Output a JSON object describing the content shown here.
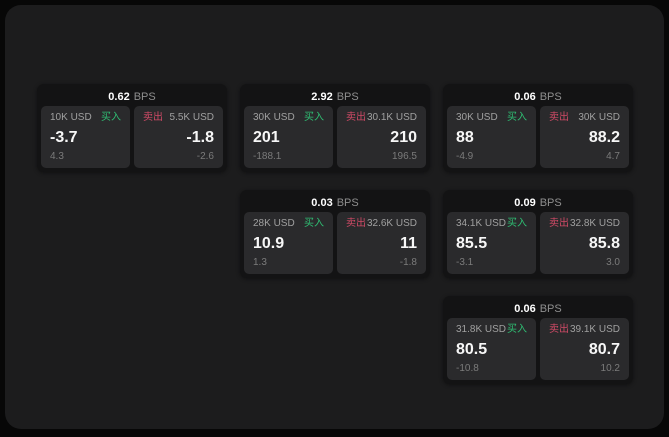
{
  "labels": {
    "buy": "买入",
    "sell": "卖出",
    "bps_unit": "BPS"
  },
  "colors": {
    "page_bg": "#070707",
    "panel_bg": "#1c1c1d",
    "card_bg": "#131314",
    "cell_bg": "#2a2a2c",
    "buy_green": "#2fbe73",
    "sell_red": "#cf4a66"
  },
  "cards": [
    {
      "bps": "0.62",
      "col": 1,
      "row": 1,
      "buy": {
        "amount": "10K USD",
        "value": "-3.7",
        "delta": "4.3"
      },
      "sell": {
        "amount": "5.5K USD",
        "value": "-1.8",
        "delta": "-2.6"
      }
    },
    {
      "bps": "2.92",
      "col": 2,
      "row": 1,
      "buy": {
        "amount": "30K USD",
        "value": "201",
        "delta": "-188.1"
      },
      "sell": {
        "amount": "30.1K USD",
        "value": "210",
        "delta": "196.5"
      }
    },
    {
      "bps": "0.06",
      "col": 3,
      "row": 1,
      "buy": {
        "amount": "30K USD",
        "value": "88",
        "delta": "-4.9"
      },
      "sell": {
        "amount": "30K USD",
        "value": "88.2",
        "delta": "4.7"
      }
    },
    {
      "bps": "0.03",
      "col": 2,
      "row": 2,
      "buy": {
        "amount": "28K USD",
        "value": "10.9",
        "delta": "1.3"
      },
      "sell": {
        "amount": "32.6K USD",
        "value": "11",
        "delta": "-1.8"
      }
    },
    {
      "bps": "0.09",
      "col": 3,
      "row": 2,
      "buy": {
        "amount": "34.1K USD",
        "value": "85.5",
        "delta": "-3.1"
      },
      "sell": {
        "amount": "32.8K USD",
        "value": "85.8",
        "delta": "3.0"
      }
    },
    {
      "bps": "0.06",
      "col": 3,
      "row": 3,
      "buy": {
        "amount": "31.8K USD",
        "value": "80.5",
        "delta": "-10.8"
      },
      "sell": {
        "amount": "39.1K USD",
        "value": "80.7",
        "delta": "10.2"
      }
    }
  ]
}
